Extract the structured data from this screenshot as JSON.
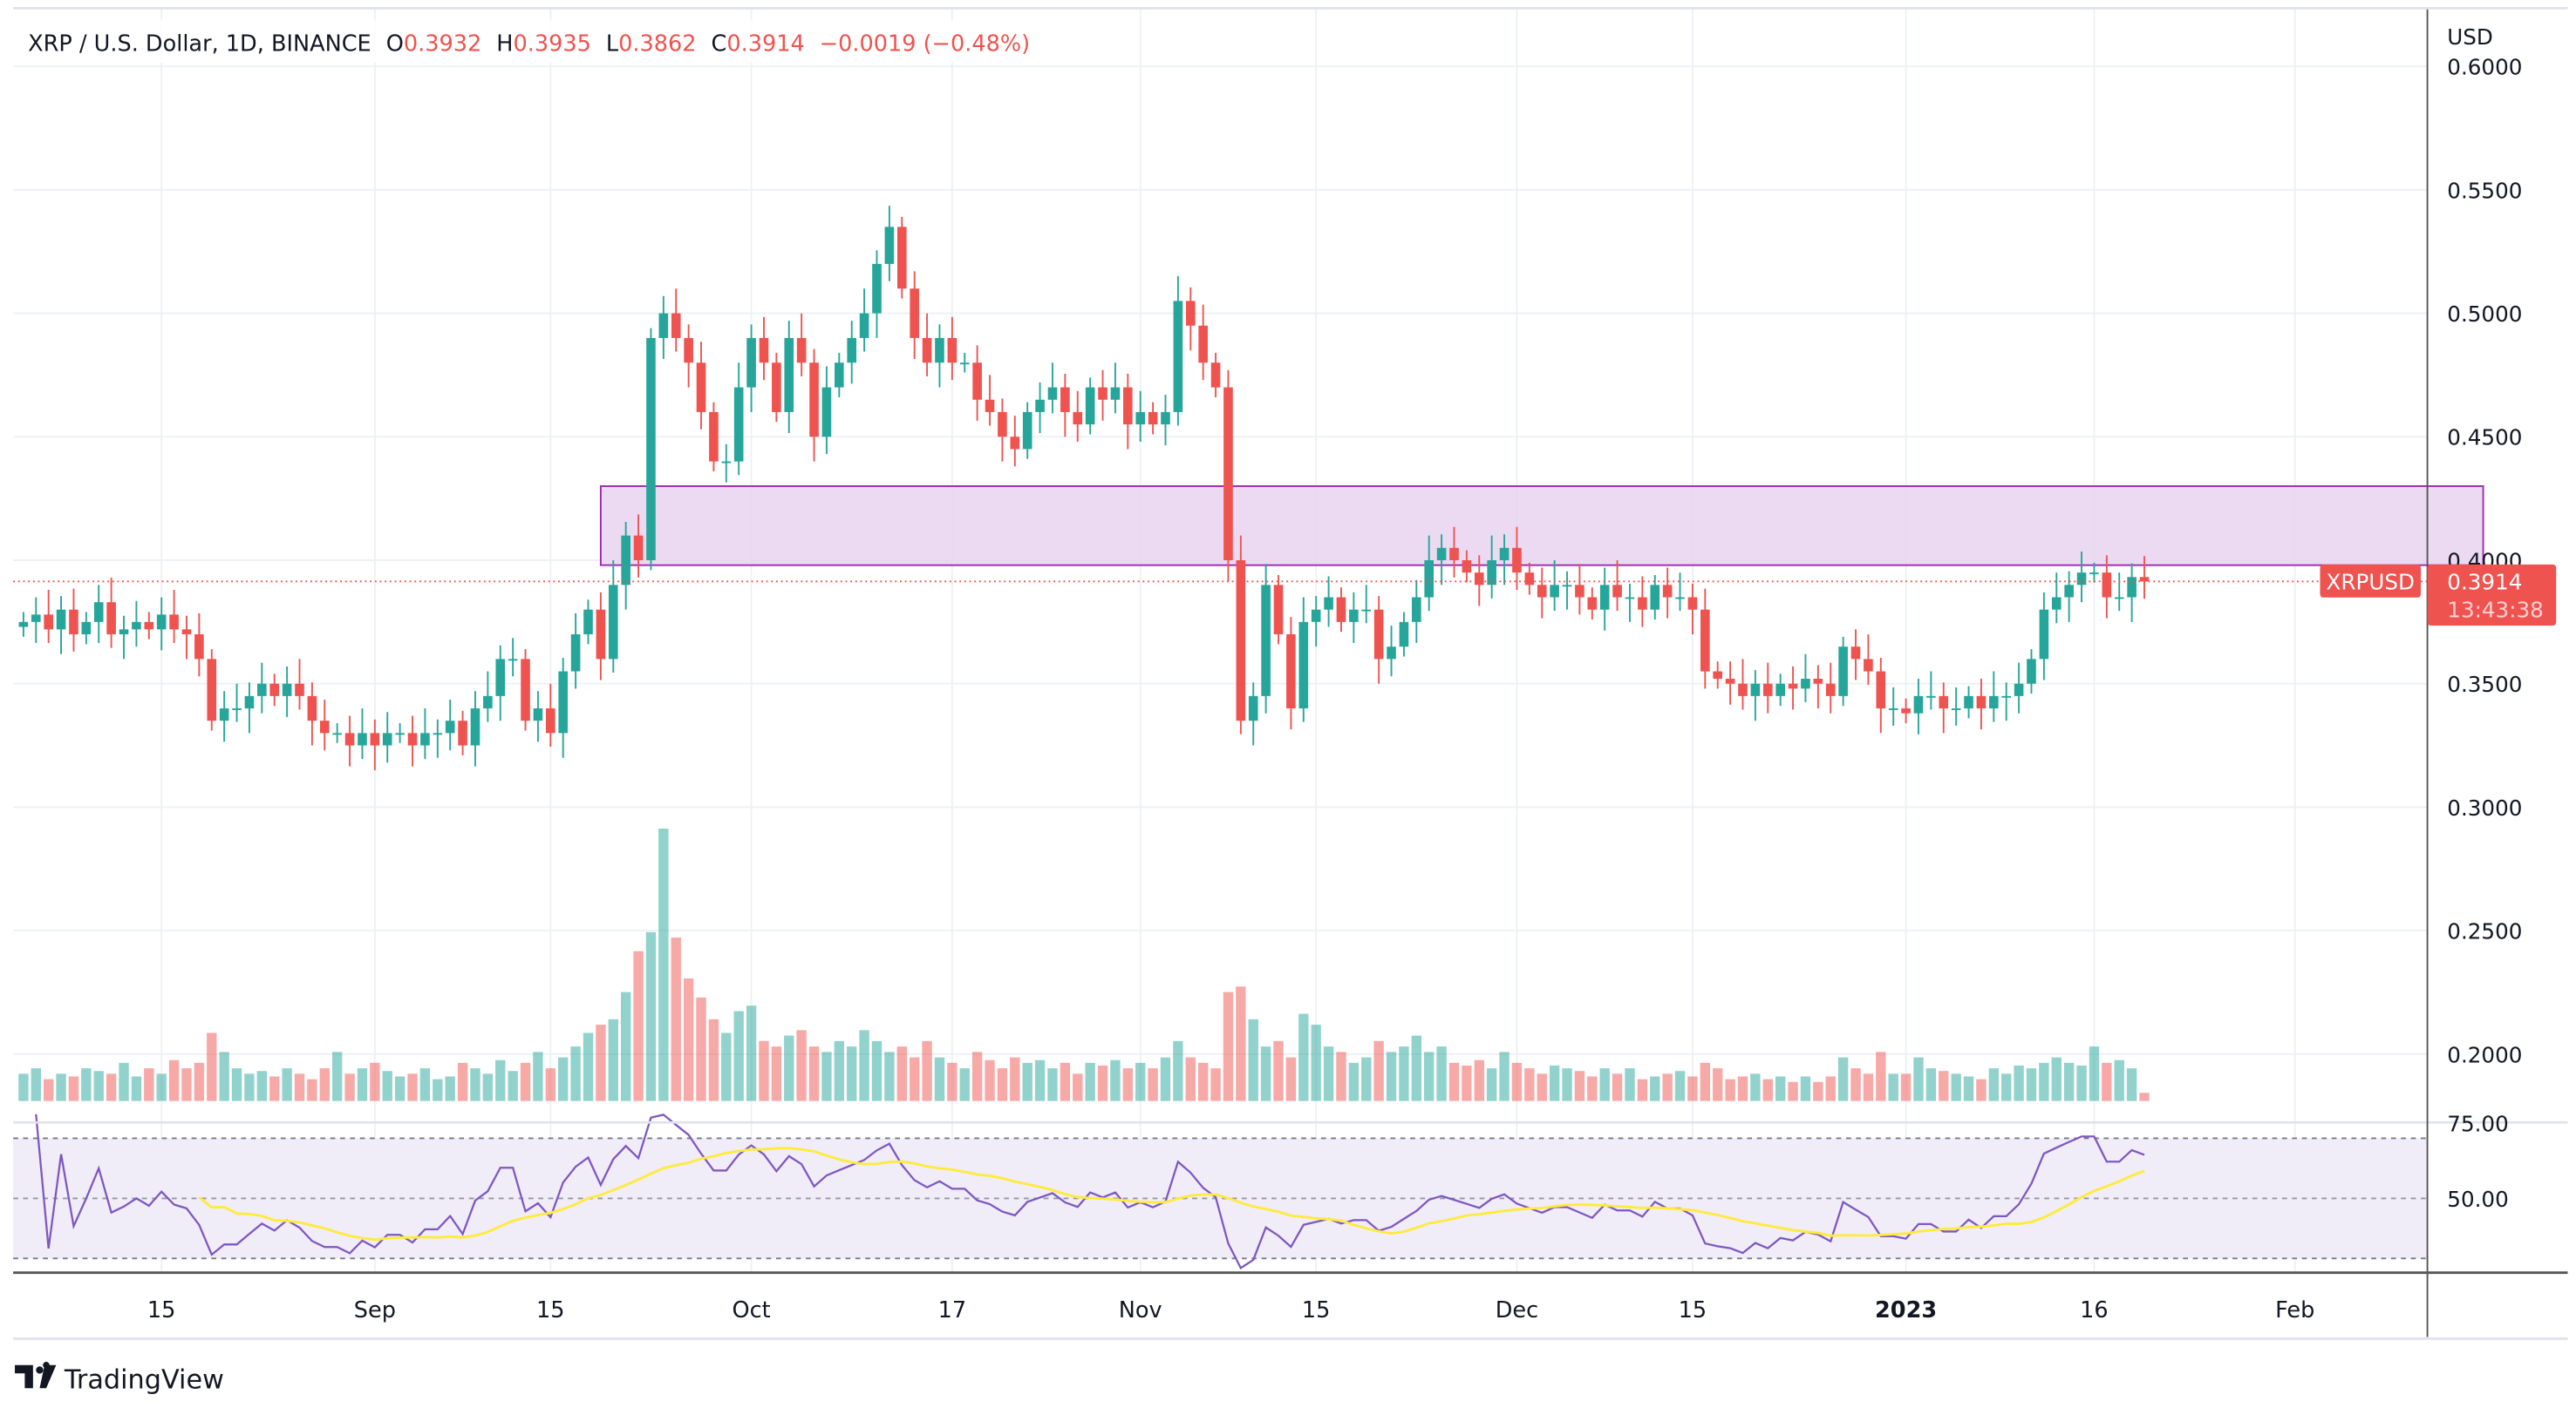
{
  "header": {
    "symbol_title": "XRP / U.S. Dollar, 1D, BINANCE",
    "o_label": "O",
    "o_value": "0.3932",
    "h_label": "H",
    "h_value": "0.3935",
    "l_label": "L",
    "l_value": "0.3862",
    "c_label": "C",
    "c_value": "0.3914",
    "change": "−0.0019 (−0.48%)"
  },
  "price_axis": {
    "currency": "USD",
    "ticks": [
      "0.6000",
      "0.5500",
      "0.5000",
      "0.4500",
      "0.4000",
      "0.3500",
      "0.3000",
      "0.2500",
      "0.2000"
    ]
  },
  "last_price": {
    "symbol": "XRPUSD",
    "price": "0.3914",
    "countdown": "13:43:38",
    "color": "#ef5350"
  },
  "rsi_axis": {
    "ticks": [
      "75.00",
      "50.00"
    ]
  },
  "time_axis": {
    "ticks": [
      "15",
      "Sep",
      "15",
      "Oct",
      "17",
      "Nov",
      "15",
      "Dec",
      "15",
      "2023",
      "16",
      "Feb"
    ]
  },
  "branding": {
    "logo_text": "TradingView"
  },
  "colors": {
    "up": "#26a69a",
    "down": "#ef5350",
    "zone_fill": "#e8d3ef",
    "zone_border": "#9c27b0",
    "rsi_line": "#7e57c2",
    "rsi_ma": "#ffeb3b",
    "rsi_band": "#f0ecf8"
  },
  "chart_data": {
    "type": "candlestick",
    "interval": "1D",
    "start_date": "2022-08-04",
    "end_date": "2023-01-20",
    "ylim": [
      0.18,
      0.61
    ],
    "grid": true,
    "zone": {
      "top": 0.43,
      "bottom": 0.398,
      "from": "2022-09-19",
      "to": "2023-02-16"
    },
    "closes": [
      0.375,
      0.378,
      0.372,
      0.38,
      0.37,
      0.375,
      0.383,
      0.37,
      0.372,
      0.375,
      0.372,
      0.378,
      0.372,
      0.37,
      0.36,
      0.335,
      0.34,
      0.34,
      0.345,
      0.35,
      0.345,
      0.35,
      0.345,
      0.335,
      0.33,
      0.33,
      0.325,
      0.33,
      0.325,
      0.33,
      0.33,
      0.325,
      0.33,
      0.33,
      0.335,
      0.325,
      0.34,
      0.345,
      0.36,
      0.36,
      0.335,
      0.34,
      0.33,
      0.355,
      0.37,
      0.38,
      0.36,
      0.39,
      0.41,
      0.4,
      0.49,
      0.5,
      0.49,
      0.48,
      0.46,
      0.44,
      0.44,
      0.47,
      0.49,
      0.48,
      0.46,
      0.49,
      0.48,
      0.45,
      0.47,
      0.48,
      0.49,
      0.5,
      0.52,
      0.535,
      0.51,
      0.49,
      0.48,
      0.49,
      0.48,
      0.48,
      0.465,
      0.46,
      0.45,
      0.445,
      0.46,
      0.465,
      0.47,
      0.46,
      0.455,
      0.47,
      0.465,
      0.47,
      0.455,
      0.46,
      0.455,
      0.46,
      0.505,
      0.495,
      0.48,
      0.47,
      0.4,
      0.335,
      0.345,
      0.39,
      0.37,
      0.34,
      0.375,
      0.38,
      0.385,
      0.375,
      0.38,
      0.38,
      0.36,
      0.365,
      0.375,
      0.385,
      0.4,
      0.405,
      0.4,
      0.395,
      0.39,
      0.4,
      0.405,
      0.395,
      0.39,
      0.385,
      0.39,
      0.39,
      0.385,
      0.38,
      0.39,
      0.385,
      0.385,
      0.38,
      0.39,
      0.385,
      0.385,
      0.38,
      0.355,
      0.352,
      0.35,
      0.345,
      0.35,
      0.345,
      0.35,
      0.348,
      0.352,
      0.35,
      0.345,
      0.365,
      0.36,
      0.355,
      0.34,
      0.34,
      0.338,
      0.345,
      0.345,
      0.34,
      0.34,
      0.345,
      0.34,
      0.345,
      0.345,
      0.35,
      0.36,
      0.38,
      0.385,
      0.39,
      0.395,
      0.395,
      0.385,
      0.385,
      0.3932,
      0.3914
    ],
    "volume_relative": [
      10,
      12,
      8,
      10,
      9,
      12,
      11,
      10,
      14,
      9,
      12,
      10,
      15,
      12,
      14,
      25,
      18,
      12,
      10,
      11,
      9,
      12,
      10,
      8,
      12,
      18,
      10,
      12,
      14,
      11,
      9,
      10,
      12,
      8,
      9,
      14,
      12,
      10,
      15,
      11,
      14,
      18,
      12,
      16,
      20,
      25,
      28,
      30,
      40,
      55,
      62,
      100,
      60,
      45,
      38,
      30,
      25,
      33,
      35,
      22,
      20,
      24,
      26,
      20,
      18,
      22,
      20,
      26,
      22,
      18,
      20,
      16,
      22,
      16,
      14,
      12,
      18,
      15,
      12,
      16,
      14,
      15,
      12,
      14,
      10,
      14,
      13,
      15,
      12,
      14,
      12,
      16,
      22,
      16,
      14,
      12,
      40,
      42,
      30,
      20,
      22,
      16,
      32,
      28,
      20,
      18,
      14,
      16,
      22,
      18,
      20,
      24,
      18,
      20,
      14,
      13,
      15,
      12,
      18,
      14,
      12,
      10,
      13,
      12,
      11,
      9,
      12,
      10,
      12,
      8,
      9,
      10,
      11,
      9,
      14,
      12,
      8,
      9,
      10,
      8,
      9,
      7,
      9,
      7,
      9,
      16,
      12,
      10,
      18,
      10,
      10,
      16,
      12,
      11,
      10,
      9,
      8,
      12,
      10,
      13,
      12,
      14,
      16,
      14,
      13,
      20,
      14,
      15,
      12,
      3
    ]
  }
}
